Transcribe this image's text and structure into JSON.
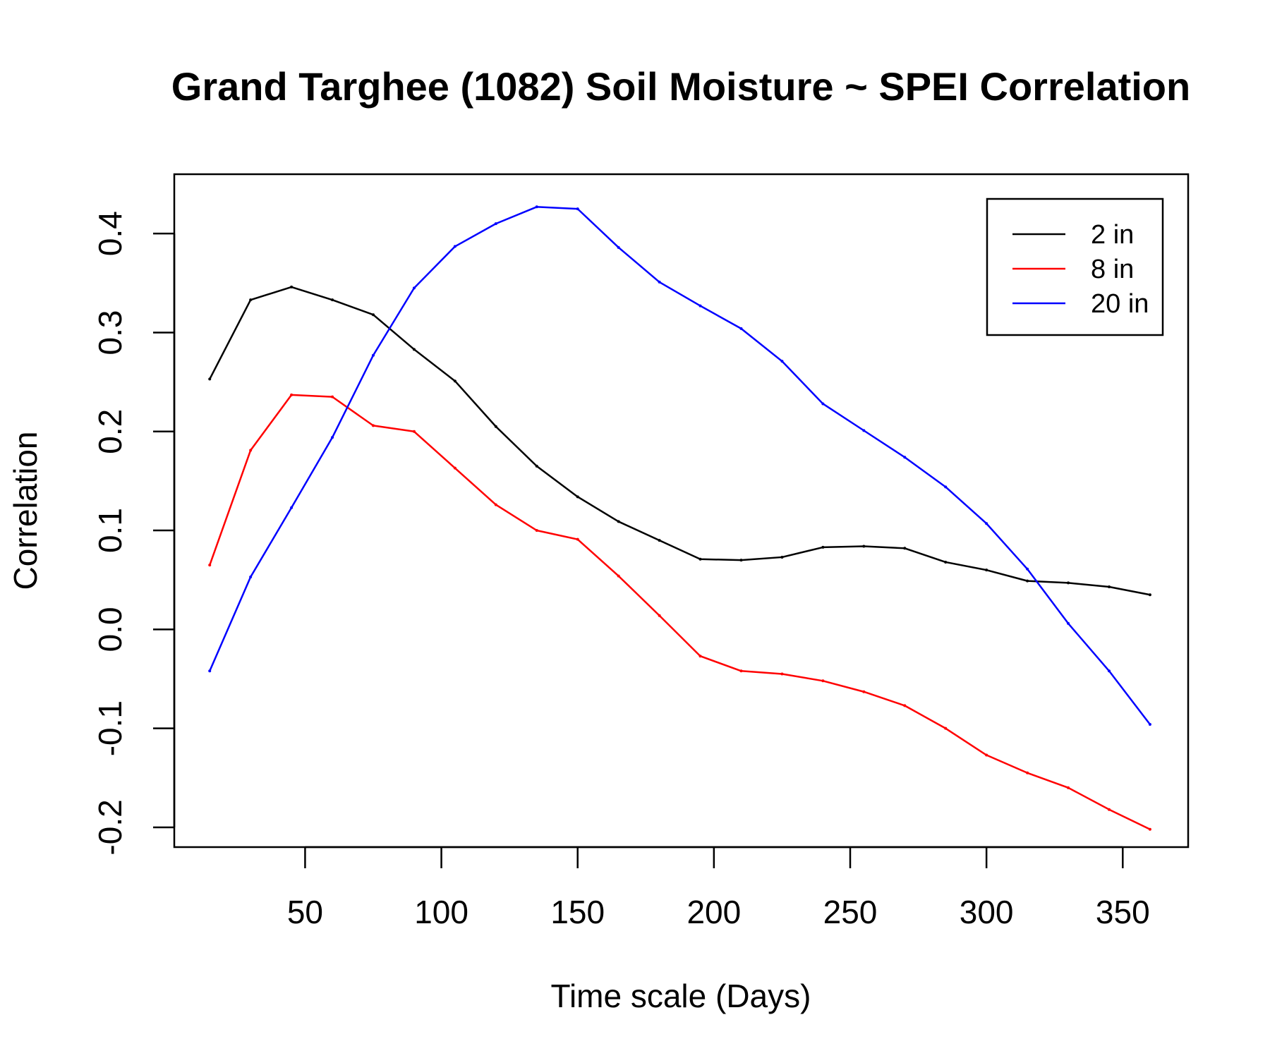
{
  "chart_data": {
    "type": "line",
    "title": "Grand Targhee (1082) Soil Moisture ~ SPEI Correlation",
    "xlabel": "Time scale (Days)",
    "ylabel": "Correlation",
    "xlim": [
      2,
      374
    ],
    "ylim": [
      -0.22,
      0.46
    ],
    "xticks": [
      50,
      100,
      150,
      200,
      250,
      300,
      350
    ],
    "yticks": [
      -0.2,
      -0.1,
      0.0,
      0.1,
      0.2,
      0.3,
      0.4
    ],
    "ytick_labels": [
      "-0.2",
      "-0.1",
      "0.0",
      "0.1",
      "0.2",
      "0.3",
      "0.4"
    ],
    "grid": false,
    "legend_position": "top-right",
    "x": [
      15,
      30,
      45,
      60,
      75,
      90,
      105,
      120,
      135,
      150,
      165,
      180,
      195,
      210,
      225,
      240,
      255,
      270,
      285,
      300,
      315,
      330,
      345,
      360
    ],
    "series": [
      {
        "name": "2 in",
        "color": "#000000",
        "values": [
          0.253,
          0.333,
          0.346,
          0.333,
          0.318,
          0.283,
          0.251,
          0.205,
          0.165,
          0.134,
          0.109,
          0.09,
          0.071,
          0.07,
          0.073,
          0.083,
          0.084,
          0.082,
          0.068,
          0.06,
          0.049,
          0.047,
          0.043,
          0.035
        ]
      },
      {
        "name": "8 in",
        "color": "#ff0000",
        "values": [
          0.065,
          0.181,
          0.237,
          0.235,
          0.206,
          0.2,
          0.163,
          0.126,
          0.1,
          0.091,
          0.054,
          0.014,
          -0.027,
          -0.042,
          -0.045,
          -0.052,
          -0.063,
          -0.077,
          -0.1,
          -0.127,
          -0.145,
          -0.16,
          -0.182,
          -0.202
        ]
      },
      {
        "name": "20 in",
        "color": "#0000ff",
        "values": [
          -0.042,
          0.053,
          0.123,
          0.194,
          0.277,
          0.345,
          0.387,
          0.41,
          0.427,
          0.425,
          0.386,
          0.351,
          0.327,
          0.304,
          0.271,
          0.228,
          0.201,
          0.174,
          0.144,
          0.107,
          0.061,
          0.006,
          -0.042,
          -0.096
        ]
      }
    ]
  }
}
